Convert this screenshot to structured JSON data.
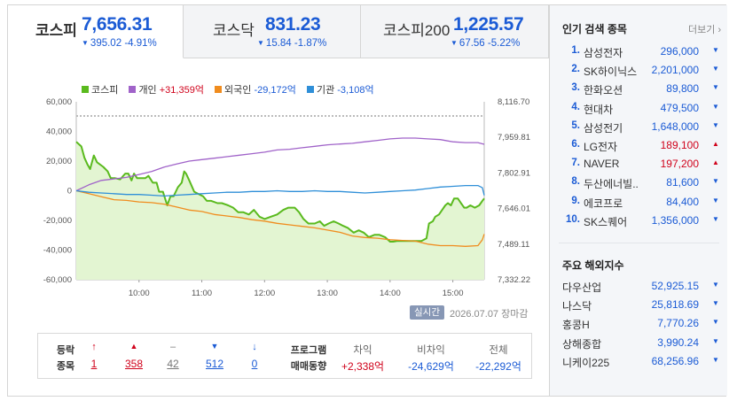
{
  "tabs": [
    {
      "name": "코스피",
      "value": "7,656.31",
      "change": "395.02",
      "rate": "-4.91%",
      "active": true
    },
    {
      "name": "코스닥",
      "value": "831.23",
      "change": "15.84",
      "rate": "-1.87%",
      "active": false
    },
    {
      "name": "코스피200",
      "value": "1,225.57",
      "change": "67.56",
      "rate": "-5.22%",
      "active": false
    }
  ],
  "legend": [
    {
      "label": "코스피",
      "value": "",
      "color": "#5aba1e",
      "value_color": "red"
    },
    {
      "label": "개인",
      "value": "+31,359억",
      "color": "#a063c9",
      "value_color": "red"
    },
    {
      "label": "외국인",
      "value": "-29,172억",
      "color": "#f08c1e",
      "value_color": "blue"
    },
    {
      "label": "기관",
      "value": "-3,108억",
      "color": "#2f8fd8",
      "value_color": "blue"
    }
  ],
  "chart_data": {
    "type": "line",
    "x_ticks": [
      "10:00",
      "11:00",
      "12:00",
      "13:00",
      "14:00",
      "15:00"
    ],
    "left_axis": {
      "ticks": [
        "60,000",
        "40,000",
        "20,000",
        "0",
        "-20,000",
        "-40,000",
        "-60,000"
      ],
      "range": [
        -60000,
        60000
      ]
    },
    "right_axis": {
      "ticks": [
        "8,116.70",
        "7,959.81",
        "7,802.91",
        "7,646.01",
        "7,489.11",
        "7,332.22"
      ],
      "range": [
        7332.22,
        8116.7
      ]
    },
    "reference_line": 7,
    "x_range": [
      9.0,
      15.5
    ],
    "series": [
      {
        "name": "코스피",
        "axis": "right",
        "color": "#5aba1e",
        "points": [
          [
            9.0,
            7940
          ],
          [
            9.08,
            7920
          ],
          [
            9.13,
            7870
          ],
          [
            9.18,
            7840
          ],
          [
            9.22,
            7820
          ],
          [
            9.28,
            7880
          ],
          [
            9.33,
            7850
          ],
          [
            9.43,
            7830
          ],
          [
            9.5,
            7810
          ],
          [
            9.55,
            7780
          ],
          [
            9.62,
            7780
          ],
          [
            9.7,
            7775
          ],
          [
            9.78,
            7800
          ],
          [
            9.83,
            7800
          ],
          [
            9.88,
            7770
          ],
          [
            9.92,
            7800
          ],
          [
            9.97,
            7780
          ],
          [
            10.03,
            7780
          ],
          [
            10.1,
            7780
          ],
          [
            10.15,
            7790
          ],
          [
            10.22,
            7760
          ],
          [
            10.28,
            7760
          ],
          [
            10.32,
            7720
          ],
          [
            10.38,
            7720
          ],
          [
            10.45,
            7660
          ],
          [
            10.5,
            7700
          ],
          [
            10.55,
            7700
          ],
          [
            10.62,
            7740
          ],
          [
            10.68,
            7760
          ],
          [
            10.72,
            7810
          ],
          [
            10.75,
            7800
          ],
          [
            10.8,
            7770
          ],
          [
            10.88,
            7720
          ],
          [
            10.95,
            7710
          ],
          [
            11.02,
            7700
          ],
          [
            11.08,
            7680
          ],
          [
            11.15,
            7680
          ],
          [
            11.25,
            7670
          ],
          [
            11.32,
            7670
          ],
          [
            11.42,
            7660
          ],
          [
            11.5,
            7650
          ],
          [
            11.58,
            7630
          ],
          [
            11.66,
            7630
          ],
          [
            11.75,
            7620
          ],
          [
            11.83,
            7640
          ],
          [
            11.92,
            7610
          ],
          [
            12.0,
            7600
          ],
          [
            12.1,
            7610
          ],
          [
            12.2,
            7620
          ],
          [
            12.3,
            7640
          ],
          [
            12.38,
            7650
          ],
          [
            12.48,
            7650
          ],
          [
            12.55,
            7630
          ],
          [
            12.62,
            7600
          ],
          [
            12.7,
            7580
          ],
          [
            12.8,
            7580
          ],
          [
            12.88,
            7590
          ],
          [
            12.95,
            7570
          ],
          [
            13.02,
            7580
          ],
          [
            13.1,
            7590
          ],
          [
            13.18,
            7580
          ],
          [
            13.25,
            7570
          ],
          [
            13.33,
            7560
          ],
          [
            13.42,
            7540
          ],
          [
            13.5,
            7550
          ],
          [
            13.58,
            7540
          ],
          [
            13.66,
            7520
          ],
          [
            13.75,
            7530
          ],
          [
            13.83,
            7530
          ],
          [
            13.92,
            7520
          ],
          [
            14.0,
            7500
          ],
          [
            14.05,
            7500
          ],
          [
            14.12,
            7503
          ],
          [
            14.25,
            7503
          ],
          [
            14.4,
            7503
          ],
          [
            14.5,
            7503
          ],
          [
            14.58,
            7515
          ],
          [
            14.62,
            7580
          ],
          [
            14.68,
            7590
          ],
          [
            14.72,
            7610
          ],
          [
            14.78,
            7620
          ],
          [
            14.83,
            7640
          ],
          [
            14.88,
            7660
          ],
          [
            14.92,
            7670
          ],
          [
            14.97,
            7660
          ],
          [
            15.02,
            7690
          ],
          [
            15.08,
            7690
          ],
          [
            15.13,
            7670
          ],
          [
            15.18,
            7650
          ],
          [
            15.22,
            7650
          ],
          [
            15.28,
            7660
          ],
          [
            15.35,
            7650
          ],
          [
            15.42,
            7660
          ],
          [
            15.47,
            7680
          ],
          [
            15.5,
            7690
          ]
        ]
      },
      {
        "name": "개인",
        "axis": "left",
        "color": "#a063c9",
        "points": [
          [
            9.0,
            0
          ],
          [
            9.2,
            4000
          ],
          [
            9.4,
            7000
          ],
          [
            9.6,
            8000
          ],
          [
            9.8,
            9000
          ],
          [
            10.0,
            11000
          ],
          [
            10.2,
            13000
          ],
          [
            10.4,
            16000
          ],
          [
            10.6,
            18000
          ],
          [
            10.8,
            20000
          ],
          [
            11.0,
            21000
          ],
          [
            11.2,
            22000
          ],
          [
            11.4,
            23000
          ],
          [
            11.6,
            24000
          ],
          [
            11.8,
            25000
          ],
          [
            12.0,
            26000
          ],
          [
            12.2,
            27500
          ],
          [
            12.4,
            28000
          ],
          [
            12.6,
            29000
          ],
          [
            12.8,
            30000
          ],
          [
            13.0,
            31000
          ],
          [
            13.2,
            31500
          ],
          [
            13.4,
            32000
          ],
          [
            13.6,
            33000
          ],
          [
            13.8,
            34000
          ],
          [
            14.0,
            35000
          ],
          [
            14.2,
            35500
          ],
          [
            14.4,
            35500
          ],
          [
            14.6,
            35000
          ],
          [
            14.8,
            34500
          ],
          [
            15.0,
            33000
          ],
          [
            15.2,
            32500
          ],
          [
            15.4,
            32500
          ],
          [
            15.5,
            31359
          ]
        ]
      },
      {
        "name": "외국인",
        "axis": "left",
        "color": "#f08c1e",
        "points": [
          [
            9.0,
            0
          ],
          [
            9.2,
            -2000
          ],
          [
            9.4,
            -4000
          ],
          [
            9.6,
            -6000
          ],
          [
            9.8,
            -6500
          ],
          [
            10.0,
            -7500
          ],
          [
            10.2,
            -8000
          ],
          [
            10.4,
            -9000
          ],
          [
            10.6,
            -11000
          ],
          [
            10.8,
            -13000
          ],
          [
            11.0,
            -14000
          ],
          [
            11.2,
            -16000
          ],
          [
            11.4,
            -17000
          ],
          [
            11.6,
            -18000
          ],
          [
            11.8,
            -19500
          ],
          [
            12.0,
            -20500
          ],
          [
            12.2,
            -22000
          ],
          [
            12.4,
            -23000
          ],
          [
            12.6,
            -24000
          ],
          [
            12.8,
            -25000
          ],
          [
            13.0,
            -26500
          ],
          [
            13.2,
            -28000
          ],
          [
            13.4,
            -30500
          ],
          [
            13.6,
            -31500
          ],
          [
            13.8,
            -32000
          ],
          [
            14.0,
            -33000
          ],
          [
            14.2,
            -33500
          ],
          [
            14.4,
            -34000
          ],
          [
            14.6,
            -36000
          ],
          [
            14.8,
            -37000
          ],
          [
            15.0,
            -37000
          ],
          [
            15.2,
            -37500
          ],
          [
            15.4,
            -37000
          ],
          [
            15.47,
            -33000
          ],
          [
            15.5,
            -29172
          ]
        ]
      },
      {
        "name": "기관",
        "axis": "left",
        "color": "#2f8fd8",
        "points": [
          [
            9.0,
            0
          ],
          [
            9.2,
            -1000
          ],
          [
            9.4,
            -1500
          ],
          [
            9.6,
            -2000
          ],
          [
            9.8,
            -2500
          ],
          [
            10.0,
            -2500
          ],
          [
            10.2,
            -3000
          ],
          [
            10.4,
            -3500
          ],
          [
            10.6,
            -3000
          ],
          [
            10.8,
            -2500
          ],
          [
            11.0,
            -2000
          ],
          [
            11.2,
            -1500
          ],
          [
            11.4,
            -1000
          ],
          [
            11.6,
            -1000
          ],
          [
            11.8,
            -500
          ],
          [
            12.0,
            -500
          ],
          [
            12.2,
            0
          ],
          [
            12.4,
            -500
          ],
          [
            12.6,
            -500
          ],
          [
            12.8,
            0
          ],
          [
            13.0,
            -500
          ],
          [
            13.2,
            -500
          ],
          [
            13.4,
            -1000
          ],
          [
            13.6,
            -1500
          ],
          [
            13.8,
            -1000
          ],
          [
            14.0,
            -500
          ],
          [
            14.2,
            0
          ],
          [
            14.4,
            500
          ],
          [
            14.6,
            1500
          ],
          [
            14.8,
            2500
          ],
          [
            15.0,
            3000
          ],
          [
            15.2,
            3500
          ],
          [
            15.4,
            3500
          ],
          [
            15.47,
            2000
          ],
          [
            15.5,
            -3108
          ]
        ]
      }
    ]
  },
  "badge": "실시간",
  "timestamp": "2026.07.07",
  "market_status": "장마감",
  "bottom": {
    "label1": "등락",
    "label2": "종목",
    "counts": [
      {
        "icon": "↑",
        "value": "1",
        "color": "red"
      },
      {
        "icon": "▲",
        "value": "358",
        "color": "red"
      },
      {
        "icon": "–",
        "value": "42",
        "color": "grey"
      },
      {
        "icon": "▼",
        "value": "512",
        "color": "blue"
      },
      {
        "icon": "↓",
        "value": "0",
        "color": "blue"
      }
    ],
    "program_label1": "프로그램",
    "program_label2": "매매동향",
    "program": [
      {
        "head": "차익",
        "value": "+2,338억",
        "color": "red"
      },
      {
        "head": "비차익",
        "value": "-24,629억",
        "color": "blue"
      },
      {
        "head": "전체",
        "value": "-22,292억",
        "color": "blue"
      }
    ]
  },
  "popular": {
    "title": "인기 검색 종목",
    "more": "더보기",
    "items": [
      {
        "rank": "1.",
        "name": "삼성전자",
        "price": "296,000",
        "dir": "down"
      },
      {
        "rank": "2.",
        "name": "SK하이닉스",
        "price": "2,201,000",
        "dir": "down"
      },
      {
        "rank": "3.",
        "name": "한화오션",
        "price": "89,800",
        "dir": "down"
      },
      {
        "rank": "4.",
        "name": "현대차",
        "price": "479,500",
        "dir": "down"
      },
      {
        "rank": "5.",
        "name": "삼성전기",
        "price": "1,648,000",
        "dir": "down"
      },
      {
        "rank": "6.",
        "name": "LG전자",
        "price": "189,100",
        "dir": "up"
      },
      {
        "rank": "7.",
        "name": "NAVER",
        "price": "197,200",
        "dir": "up"
      },
      {
        "rank": "8.",
        "name": "두산에너빌..",
        "price": "81,600",
        "dir": "down"
      },
      {
        "rank": "9.",
        "name": "에코프로",
        "price": "84,400",
        "dir": "down"
      },
      {
        "rank": "10.",
        "name": "SK스퀘어",
        "price": "1,356,000",
        "dir": "down"
      }
    ]
  },
  "world": {
    "title": "주요 해외지수",
    "items": [
      {
        "name": "다우산업",
        "value": "52,925.15"
      },
      {
        "name": "나스닥",
        "value": "25,818.69"
      },
      {
        "name": "홍콩H",
        "value": "7,770.26"
      },
      {
        "name": "상해종합",
        "value": "3,990.24"
      },
      {
        "name": "니케이225",
        "value": "68,256.96"
      }
    ]
  },
  "colors": {
    "up": "#d0021b",
    "down": "#1b5bd5",
    "flat": "#777777",
    "fill": "#e3f5d2"
  }
}
